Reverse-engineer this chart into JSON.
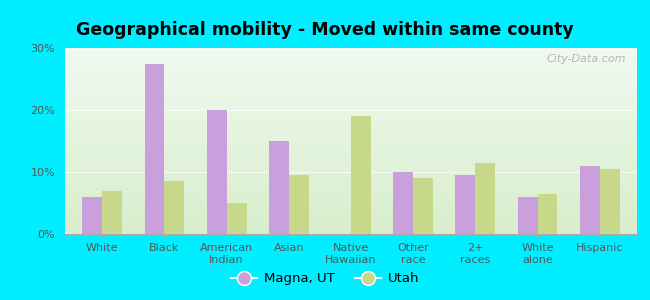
{
  "title": "Geographical mobility - Moved within same county",
  "categories": [
    "White",
    "Black",
    "American\nIndian",
    "Asian",
    "Native\nHawaiian",
    "Other\nrace",
    "2+\nraces",
    "White\nalone",
    "Hispanic"
  ],
  "magna_values": [
    6.0,
    27.5,
    20.0,
    15.0,
    0.0,
    10.0,
    9.5,
    6.0,
    11.0
  ],
  "utah_values": [
    7.0,
    8.5,
    5.0,
    9.5,
    19.0,
    9.0,
    11.5,
    6.5,
    10.5
  ],
  "magna_color": "#c9a0dc",
  "utah_color": "#c8d88a",
  "ylim": [
    0,
    30
  ],
  "yticks": [
    0,
    10,
    20,
    30
  ],
  "ytick_labels": [
    "0%",
    "10%",
    "20%",
    "30%"
  ],
  "legend_magna": "Magna, UT",
  "legend_utah": "Utah",
  "background_outer": "#00eeff",
  "background_inner_top": "#f0faf0",
  "background_inner_bottom": "#d8eecc",
  "watermark": "City-Data.com",
  "bar_width": 0.32,
  "title_fontsize": 12.5,
  "tick_fontsize": 8,
  "legend_fontsize": 9.5
}
